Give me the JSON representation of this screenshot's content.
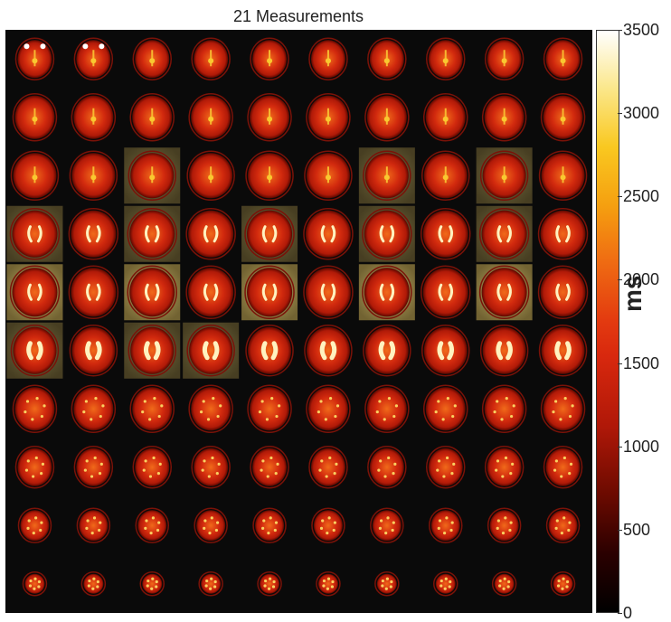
{
  "figure": {
    "title": "21 Measurements",
    "grid_rows": 10,
    "grid_cols": 10
  },
  "colorbar": {
    "unit": "ms",
    "ticks": [
      "3500",
      "3000",
      "2500",
      "2000",
      "1500",
      "1000",
      "500",
      "0"
    ],
    "min": 0,
    "max": 3500,
    "colormap": [
      "#000000",
      "#6a0a00",
      "#d8280e",
      "#ef6a12",
      "#f9c820",
      "#ffffff"
    ]
  }
}
